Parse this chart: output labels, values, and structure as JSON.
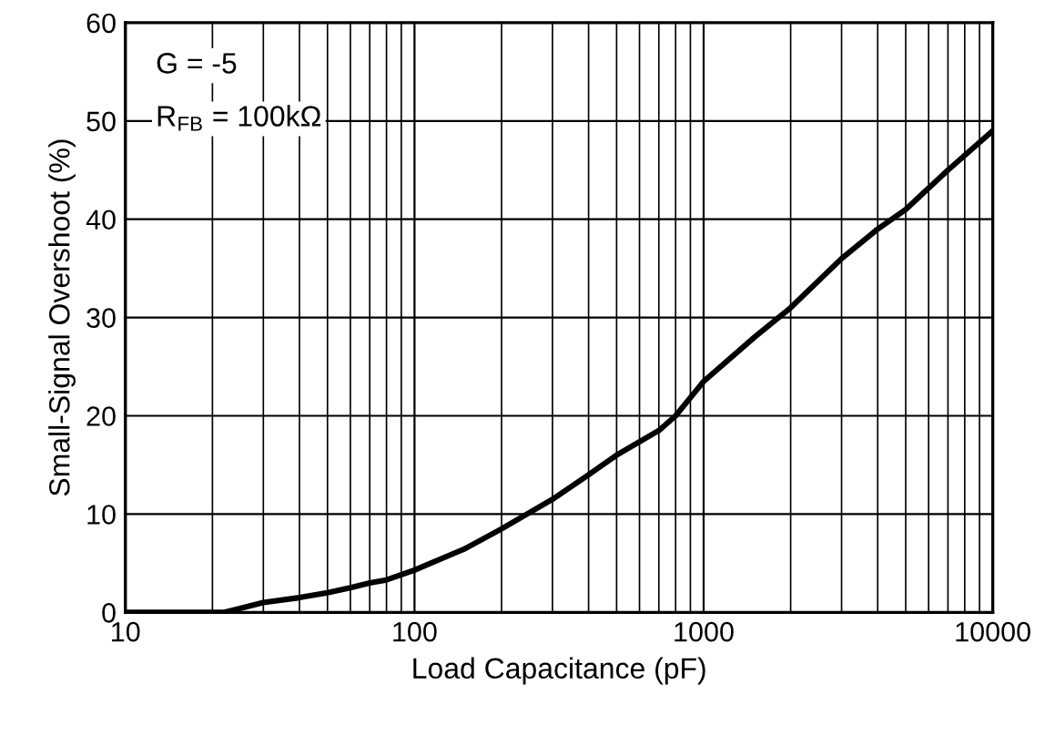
{
  "chart_data": {
    "type": "line",
    "xlabel": "Load Capacitance (pF)",
    "ylabel": "Small-Signal Overshoot (%)",
    "log": "x",
    "xlim": [
      10,
      10000
    ],
    "xticks": [
      10,
      100,
      1000,
      10000
    ],
    "ylim": [
      0,
      60
    ],
    "yticks": [
      0,
      10,
      20,
      30,
      40,
      50,
      60
    ],
    "grid": true,
    "legend": false,
    "annotations": [
      "G = -5",
      "R$_{FB}$ = 100kΩ"
    ],
    "series": [
      {
        "color": "#000000",
        "x": [
          10,
          15,
          22,
          30,
          40,
          50,
          60,
          70,
          80,
          100,
          150,
          200,
          300,
          400,
          500,
          700,
          800,
          1000,
          1500,
          2000,
          3000,
          4000,
          5000,
          7000,
          10000
        ],
        "values": [
          0,
          0,
          0,
          1,
          1.5,
          2,
          2.5,
          3,
          3.3,
          4.3,
          6.5,
          8.5,
          11.5,
          14,
          16,
          18.5,
          20,
          23.5,
          28,
          31,
          36,
          39,
          41,
          45,
          49
        ]
      }
    ]
  }
}
